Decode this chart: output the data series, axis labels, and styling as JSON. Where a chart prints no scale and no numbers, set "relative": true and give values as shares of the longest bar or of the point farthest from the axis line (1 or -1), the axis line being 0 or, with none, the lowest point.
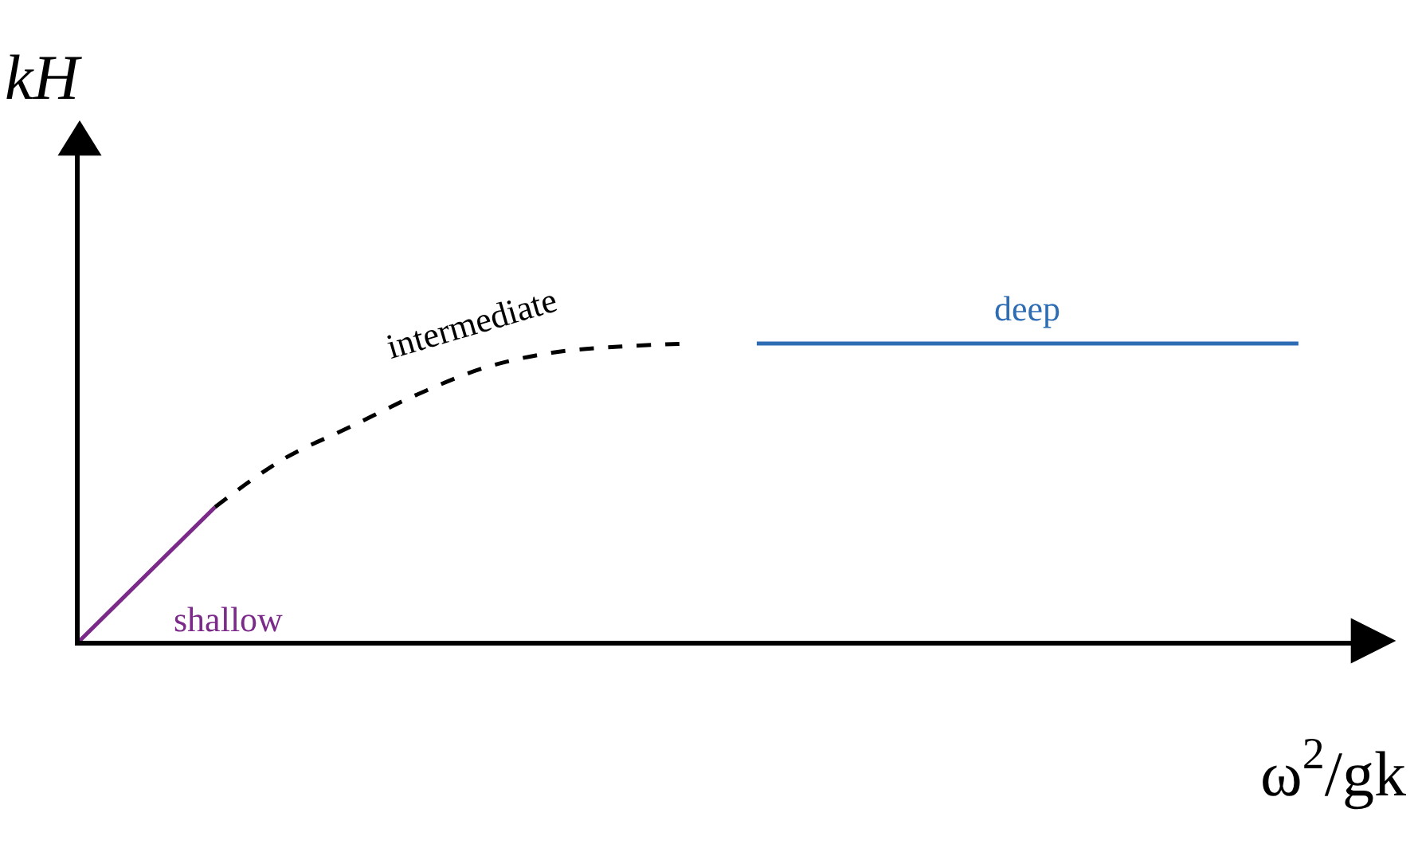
{
  "chart_data": {
    "type": "line",
    "relative": true,
    "xlabel": "ω$^{2}$/gk",
    "ylabel": "kH",
    "marker": "none",
    "legend": false,
    "tick_labels": false,
    "categories": [
      null,
      null,
      null,
      null,
      null,
      null,
      null,
      null,
      null,
      null,
      null,
      null,
      null,
      null,
      null,
      null,
      null,
      null,
      null
    ],
    "series": [
      {
        "name": "shallow",
        "color": "#7b2a8a",
        "values": [
          0,
          0.225,
          0.45,
          null,
          null,
          null,
          null,
          null,
          null,
          null,
          null,
          null,
          null,
          null,
          null,
          null,
          null,
          null,
          null
        ]
      },
      {
        "name": "intermediate",
        "color": "#000000",
        "line_style": "dashed",
        "values": [
          null,
          null,
          0.45,
          0.61,
          0.72,
          0.83,
          0.92,
          0.97,
          0.99,
          1,
          null,
          null,
          null,
          null,
          null,
          null,
          null,
          null,
          null
        ]
      },
      {
        "name": "deep",
        "color": "#2e6db4",
        "values": [
          null,
          null,
          null,
          null,
          null,
          null,
          null,
          null,
          null,
          null,
          1,
          1,
          1,
          1,
          1,
          1,
          1,
          1,
          1
        ]
      }
    ]
  }
}
